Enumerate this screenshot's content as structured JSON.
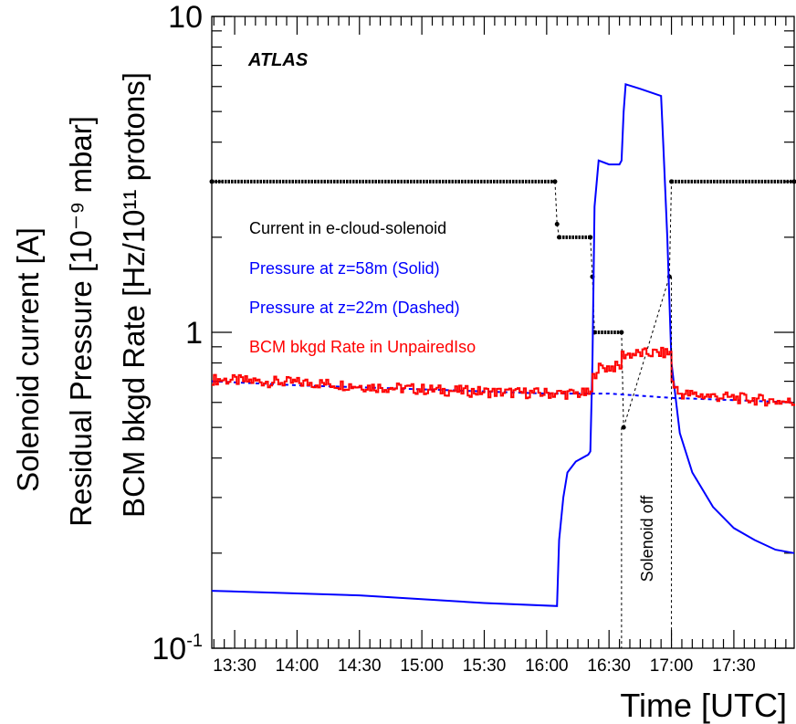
{
  "chart_data": {
    "type": "line",
    "atlas_label": "ATLAS",
    "xlabel": "Time [UTC]",
    "ylabel_lines": [
      "Solenoid current [A]",
      "Residual Pressure [10⁻⁹ mbar]",
      "BCM bkgd Rate [Hz/10¹¹ protons]"
    ],
    "y_scale": "log",
    "ylim": [
      0.1,
      10
    ],
    "y_ticks": [
      {
        "value": 0.1,
        "base": "10",
        "exp": "-1"
      },
      {
        "value": 1,
        "base": "1",
        "exp": ""
      },
      {
        "value": 10,
        "base": "10",
        "exp": ""
      }
    ],
    "xlim": [
      "13:19",
      "17:59"
    ],
    "x_ticks": [
      "13:30",
      "14:00",
      "14:30",
      "15:00",
      "15:30",
      "16:00",
      "16:30",
      "17:00",
      "17:30"
    ],
    "grid": false,
    "legend_position": "left-center",
    "annotations": [
      {
        "text": "Solenoid off",
        "x_start": "16:36",
        "x_end": "17:00"
      }
    ],
    "colors": {
      "current": "#000000",
      "pressure": "#0000ff",
      "bcm": "#ff0000"
    },
    "series": [
      {
        "name": "Current in e-cloud-solenoid",
        "color": "#000000",
        "style": "dots",
        "points": [
          [
            "13:19",
            3
          ],
          [
            "16:04",
            3
          ],
          [
            "16:05",
            2.2
          ],
          [
            "16:06",
            2
          ],
          [
            "16:21",
            2
          ],
          [
            "16:22",
            1.5
          ],
          [
            "16:23",
            1
          ],
          [
            "16:36",
            1
          ],
          [
            "16:37",
            0.5
          ],
          [
            "16:59",
            1.5
          ],
          [
            "17:00",
            3
          ],
          [
            "17:59",
            3
          ]
        ]
      },
      {
        "name": "Pressure at z=58m (Solid)",
        "color": "#0000ff",
        "style": "solid",
        "points": [
          [
            "13:19",
            0.152
          ],
          [
            "14:30",
            0.147
          ],
          [
            "15:30",
            0.139
          ],
          [
            "16:05",
            0.136
          ],
          [
            "16:06",
            0.22
          ],
          [
            "16:08",
            0.3
          ],
          [
            "16:10",
            0.36
          ],
          [
            "16:14",
            0.39
          ],
          [
            "16:20",
            0.41
          ],
          [
            "16:21",
            0.42
          ],
          [
            "16:22",
            0.8
          ],
          [
            "16:23",
            2.5
          ],
          [
            "16:25",
            3.5
          ],
          [
            "16:30",
            3.4
          ],
          [
            "16:35",
            3.4
          ],
          [
            "16:36",
            3.5
          ],
          [
            "16:37",
            5
          ],
          [
            "16:38",
            6.1
          ],
          [
            "16:45",
            5.9
          ],
          [
            "16:55",
            5.6
          ],
          [
            "16:56",
            4
          ],
          [
            "16:58",
            2
          ],
          [
            "17:00",
            0.8
          ],
          [
            "17:04",
            0.48
          ],
          [
            "17:10",
            0.36
          ],
          [
            "17:20",
            0.28
          ],
          [
            "17:30",
            0.24
          ],
          [
            "17:40",
            0.22
          ],
          [
            "17:50",
            0.205
          ],
          [
            "17:59",
            0.2
          ]
        ]
      },
      {
        "name": "Pressure at z=22m (Dashed)",
        "color": "#0000ff",
        "style": "dashed",
        "points": [
          [
            "13:19",
            0.7
          ],
          [
            "14:00",
            0.68
          ],
          [
            "15:00",
            0.66
          ],
          [
            "16:00",
            0.64
          ],
          [
            "16:30",
            0.64
          ],
          [
            "17:00",
            0.62
          ],
          [
            "17:30",
            0.61
          ],
          [
            "17:59",
            0.6
          ]
        ]
      },
      {
        "name": "BCM bkgd Rate in UnpairedIso",
        "color": "#ff0000",
        "style": "step",
        "points": [
          [
            "13:19",
            0.71
          ],
          [
            "13:40",
            0.7
          ],
          [
            "14:10",
            0.69
          ],
          [
            "14:40",
            0.67
          ],
          [
            "15:10",
            0.655
          ],
          [
            "15:40",
            0.645
          ],
          [
            "16:10",
            0.64
          ],
          [
            "16:21",
            0.64
          ],
          [
            "16:22",
            0.72
          ],
          [
            "16:24",
            0.77
          ],
          [
            "16:35",
            0.78
          ],
          [
            "16:36",
            0.85
          ],
          [
            "16:50",
            0.86
          ],
          [
            "16:59",
            0.86
          ],
          [
            "17:00",
            0.7
          ],
          [
            "17:03",
            0.64
          ],
          [
            "17:30",
            0.62
          ],
          [
            "17:59",
            0.6
          ]
        ]
      }
    ]
  }
}
